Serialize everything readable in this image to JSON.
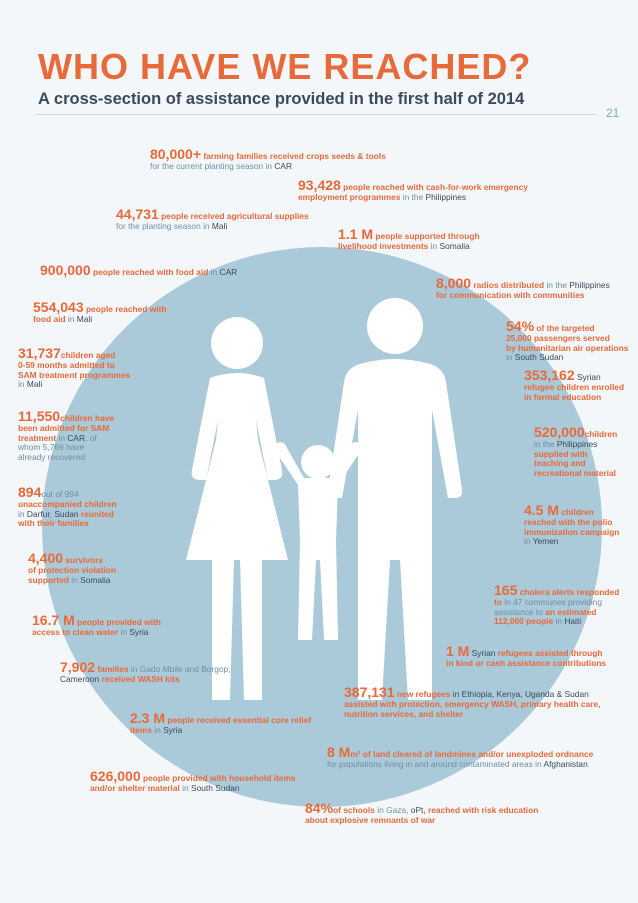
{
  "header": {
    "title": "WHO HAVE WE REACHED?",
    "subtitle": "A cross-section of assistance provided in the first half of 2014",
    "page_number": "21"
  },
  "colors": {
    "accent": "#e8693a",
    "circle": "#aac9d9",
    "figure": "#ffffff",
    "text_dark": "#3b4a5a",
    "text_muted": "#6f8ea6"
  },
  "icons": [
    "family-figures-icon"
  ],
  "stats": {
    "s1": {
      "num": "80,000+",
      "l1": "farming families received crops seeds & tools",
      "l2a": "for the current planting season in ",
      "l2b": "CAR"
    },
    "s2": {
      "num": "93,428",
      "l1": "people reached with cash-for-work emergency",
      "l2a": "employment programmes ",
      "l2b": "in the ",
      "l2c": "Philippines"
    },
    "s3": {
      "num": "44,731",
      "l1": "people received agricultural supplies",
      "l2a": "for the planting season in ",
      "l2b": "Mali"
    },
    "s4": {
      "num": "1.1 M",
      "l1": "people supported through",
      "l2a": "livelihood investments ",
      "l2b": "in ",
      "l2c": "Somalia"
    },
    "s5": {
      "num": "900,000",
      "l1": "people reached with food aid ",
      "l1b": "in ",
      "l1c": "CAR"
    },
    "s6": {
      "num": "8,000",
      "l1": "radios distributed ",
      "l1b": "in the ",
      "l1c": "Philippines",
      "l2": "for communication with communities"
    },
    "s7": {
      "num": "554,043",
      "l1": "people reached with",
      "l2a": "food aid ",
      "l2b": "in ",
      "l2c": "Mali"
    },
    "s8": {
      "num": "54%",
      "l1": "of the targeted",
      "l2": "25,000 passengers served",
      "l3": "by humanitarian air operations",
      "l4a": "in ",
      "l4b": "South Sudan"
    },
    "s9": {
      "num": "31,737",
      "l1": "children aged",
      "l2": "0-59 months admitted to",
      "l3": "SAM treatment programmes",
      "l4a": "in ",
      "l4b": "Mali"
    },
    "s10": {
      "num": "353,162",
      "l1": "Syrian",
      "l2": "refugee children enrolled",
      "l3": "in formal education"
    },
    "s11": {
      "num": "11,550",
      "l1": "children have",
      "l2": "been admitted for SAM",
      "l3a": "treatment ",
      "l3b": "in ",
      "l3c": "CAR",
      "l3d": ", of",
      "l4": "whom 5,769 have",
      "l5": "already recovered"
    },
    "s12": {
      "num": "520,000",
      "l1": "children",
      "l2a": "in the ",
      "l2b": "Philippines",
      "l3": "supplied with",
      "l4": "teaching and",
      "l5": "recreational material"
    },
    "s13": {
      "num": "894",
      "l1": "out of 994",
      "l2": "unaccompanied children",
      "l3a": "in ",
      "l3b": "Darfur",
      "l3c": ", ",
      "l3d": "Sudan",
      "l3e": " reunited",
      "l4": "with their families"
    },
    "s14": {
      "num": "4.5 M",
      "l1": "children",
      "l2": "reached with the polio",
      "l3": "immunization campaign",
      "l4a": "in ",
      "l4b": "Yemen"
    },
    "s15": {
      "num": "4,400",
      "l1": "survivors",
      "l2": "of protection violation",
      "l3a": "supported ",
      "l3b": "in ",
      "l3c": "Somalia"
    },
    "s16": {
      "num": "165",
      "l1": "cholera alerts responded",
      "l2a": "to ",
      "l2b": "in 47 communes providing",
      "l3a": "assistance to ",
      "l3b": "an estimated",
      "l4a": "112,000 people ",
      "l4b": "in ",
      "l4c": "Haiti"
    },
    "s17": {
      "num": "16.7 M",
      "l1": "people provided with",
      "l2a": "access to clean water ",
      "l2b": "in ",
      "l2c": "Syria"
    },
    "s18": {
      "num": "1 M",
      "l1a": "Syrian ",
      "l1b": "refugees assisted through",
      "l2": "in kind or cash assistance contributions"
    },
    "s19": {
      "num": "7,902",
      "l1a": "families ",
      "l1b": "in Gado Mbile and Borgop,",
      "l2a": "Cameroon ",
      "l2b": "received WASH kits"
    },
    "s20": {
      "num": "387,131",
      "l1a": "new refugees ",
      "l1b": "in Ethiopia, Kenya, Uganda & Sudan",
      "l2": "assisted with protection, emergency WASH, primary health care,",
      "l3": "nutrition services, and shelter"
    },
    "s21": {
      "num": "2.3 M",
      "l1": "people received essential core relief",
      "l2a": "items ",
      "l2b": "in ",
      "l2c": "Syria"
    },
    "s22": {
      "num": "8 M",
      "l1a": "m² of land cleared of landmines and/or unexploded ordnance",
      "l2a": "for populations living in and around contaminated areas in ",
      "l2b": "Afghanistan"
    },
    "s23": {
      "num": "626,000",
      "l1": "people provided with household items",
      "l2a": "and/or shelter material ",
      "l2b": "in ",
      "l2c": "South Sudan"
    },
    "s24": {
      "num": "84%",
      "l1a": "of schools ",
      "l1b": "in Gaza, ",
      "l1c": "oPt",
      "l1d": ", reached with risk education",
      "l2": "about explosive remnants of war"
    }
  }
}
